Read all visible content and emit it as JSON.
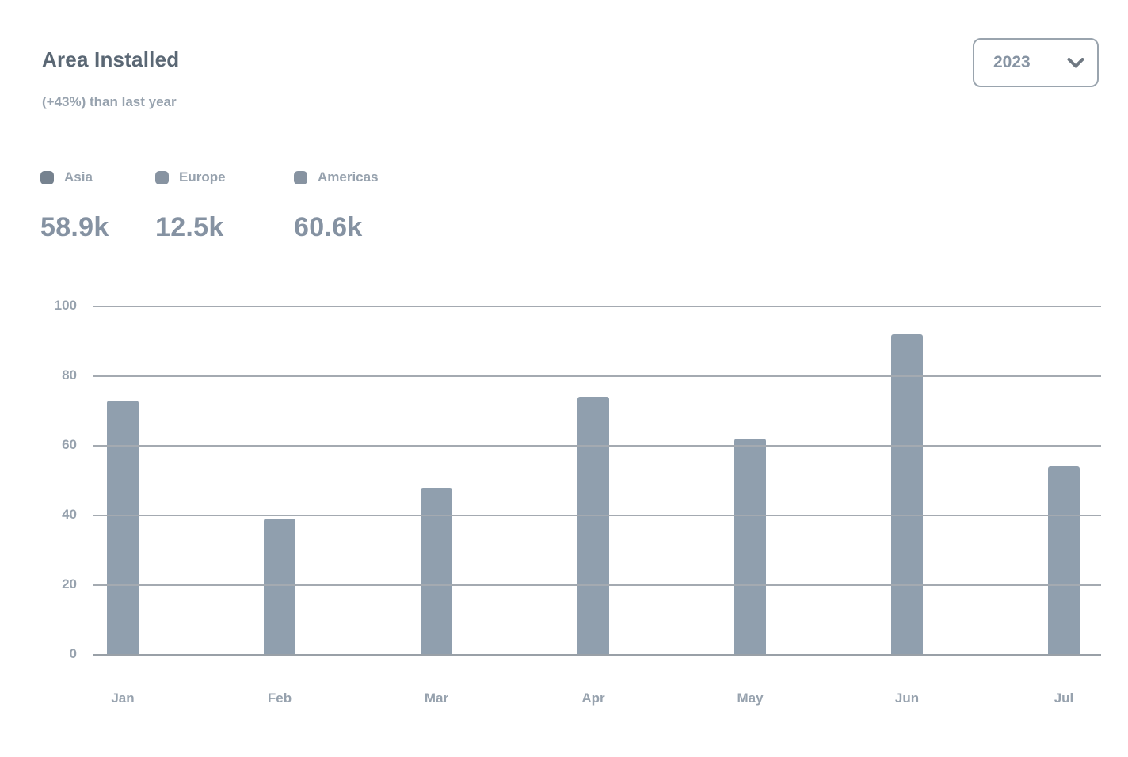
{
  "card": {
    "title": "Area Installed",
    "subtitle": "(+43%) than last year",
    "year_select": {
      "value": "2023"
    },
    "legend": [
      {
        "label": "Asia",
        "total": "58.9k",
        "color": "#76828f"
      },
      {
        "label": "Europe",
        "total": "12.5k",
        "color": "#8793a1"
      },
      {
        "label": "Americas",
        "total": "60.6k",
        "color": "#8793a1"
      }
    ]
  },
  "chart_data": {
    "type": "bar",
    "title": "Area Installed",
    "subtitle": "(+43%) than last year",
    "categories": [
      "Jan",
      "Feb",
      "Mar",
      "Apr",
      "May",
      "Jun",
      "Jul"
    ],
    "values": [
      73,
      39,
      48,
      74,
      62,
      92,
      54
    ],
    "ylim": [
      0,
      100
    ],
    "yticks": [
      0,
      20,
      40,
      60,
      80,
      100
    ],
    "grid": "horizontal-solid",
    "legend_position": "top-left",
    "bar_color": "#909fae",
    "xlabel": "",
    "ylabel": ""
  }
}
